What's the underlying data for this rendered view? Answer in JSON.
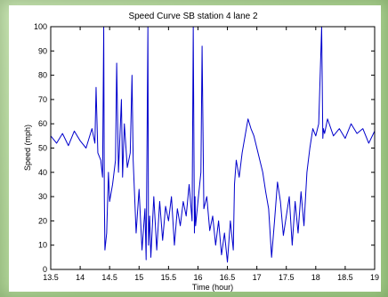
{
  "chart_data": {
    "type": "line",
    "title": "Speed Curve SB station 4 lane 2",
    "xlabel": "Time (hour)",
    "ylabel": "Speed (mph)",
    "xlim": [
      13.5,
      19
    ],
    "ylim": [
      0,
      100
    ],
    "xticks": [
      "13.5",
      "14",
      "14.5",
      "15",
      "15.5",
      "16",
      "16.5",
      "17",
      "17.5",
      "18",
      "18.5",
      "19"
    ],
    "yticks": [
      "0",
      "10",
      "20",
      "30",
      "40",
      "50",
      "60",
      "70",
      "80",
      "90",
      "100"
    ],
    "grid": false,
    "series": [
      {
        "color": "#0000cc",
        "x": [
          13.5,
          13.6,
          13.7,
          13.8,
          13.9,
          14.0,
          14.1,
          14.2,
          14.25,
          14.27,
          14.3,
          14.35,
          14.38,
          14.4,
          14.41,
          14.42,
          14.45,
          14.48,
          14.5,
          14.55,
          14.6,
          14.62,
          14.65,
          14.7,
          14.72,
          14.75,
          14.8,
          14.85,
          14.88,
          14.9,
          14.95,
          15.0,
          15.05,
          15.1,
          15.12,
          15.15,
          15.16,
          15.18,
          15.2,
          15.25,
          15.3,
          15.35,
          15.4,
          15.45,
          15.5,
          15.55,
          15.6,
          15.65,
          15.7,
          15.75,
          15.8,
          15.85,
          15.9,
          15.92,
          15.94,
          15.95,
          15.96,
          16.0,
          16.05,
          16.07,
          16.1,
          16.15,
          16.2,
          16.25,
          16.3,
          16.35,
          16.4,
          16.45,
          16.5,
          16.55,
          16.6,
          16.62,
          16.65,
          16.7,
          16.75,
          16.8,
          16.85,
          16.9,
          16.95,
          17.0,
          17.05,
          17.1,
          17.15,
          17.2,
          17.25,
          17.3,
          17.35,
          17.4,
          17.45,
          17.5,
          17.55,
          17.6,
          17.65,
          17.7,
          17.75,
          17.8,
          17.85,
          17.9,
          17.95,
          18.0,
          18.05,
          18.1,
          18.12,
          18.13,
          18.15,
          18.2,
          18.3,
          18.4,
          18.5,
          18.6,
          18.7,
          18.8,
          18.9,
          19.0
        ],
        "y": [
          55,
          52,
          56,
          51,
          57,
          53,
          50,
          58,
          52,
          75,
          48,
          45,
          38,
          100,
          30,
          8,
          15,
          40,
          28,
          35,
          45,
          85,
          40,
          70,
          38,
          60,
          42,
          48,
          80,
          45,
          15,
          33,
          8,
          25,
          4,
          100,
          10,
          22,
          5,
          30,
          8,
          28,
          12,
          26,
          20,
          30,
          10,
          25,
          18,
          28,
          22,
          35,
          20,
          100,
          15,
          30,
          18,
          28,
          40,
          92,
          25,
          30,
          16,
          22,
          10,
          20,
          6,
          15,
          3,
          20,
          8,
          35,
          45,
          38,
          48,
          55,
          62,
          58,
          55,
          50,
          45,
          40,
          32,
          25,
          5,
          20,
          36,
          28,
          14,
          22,
          30,
          10,
          28,
          15,
          32,
          18,
          40,
          50,
          58,
          55,
          60,
          100,
          54,
          58,
          56,
          62,
          55,
          58,
          54,
          60,
          56,
          58,
          52,
          57
        ]
      }
    ]
  }
}
